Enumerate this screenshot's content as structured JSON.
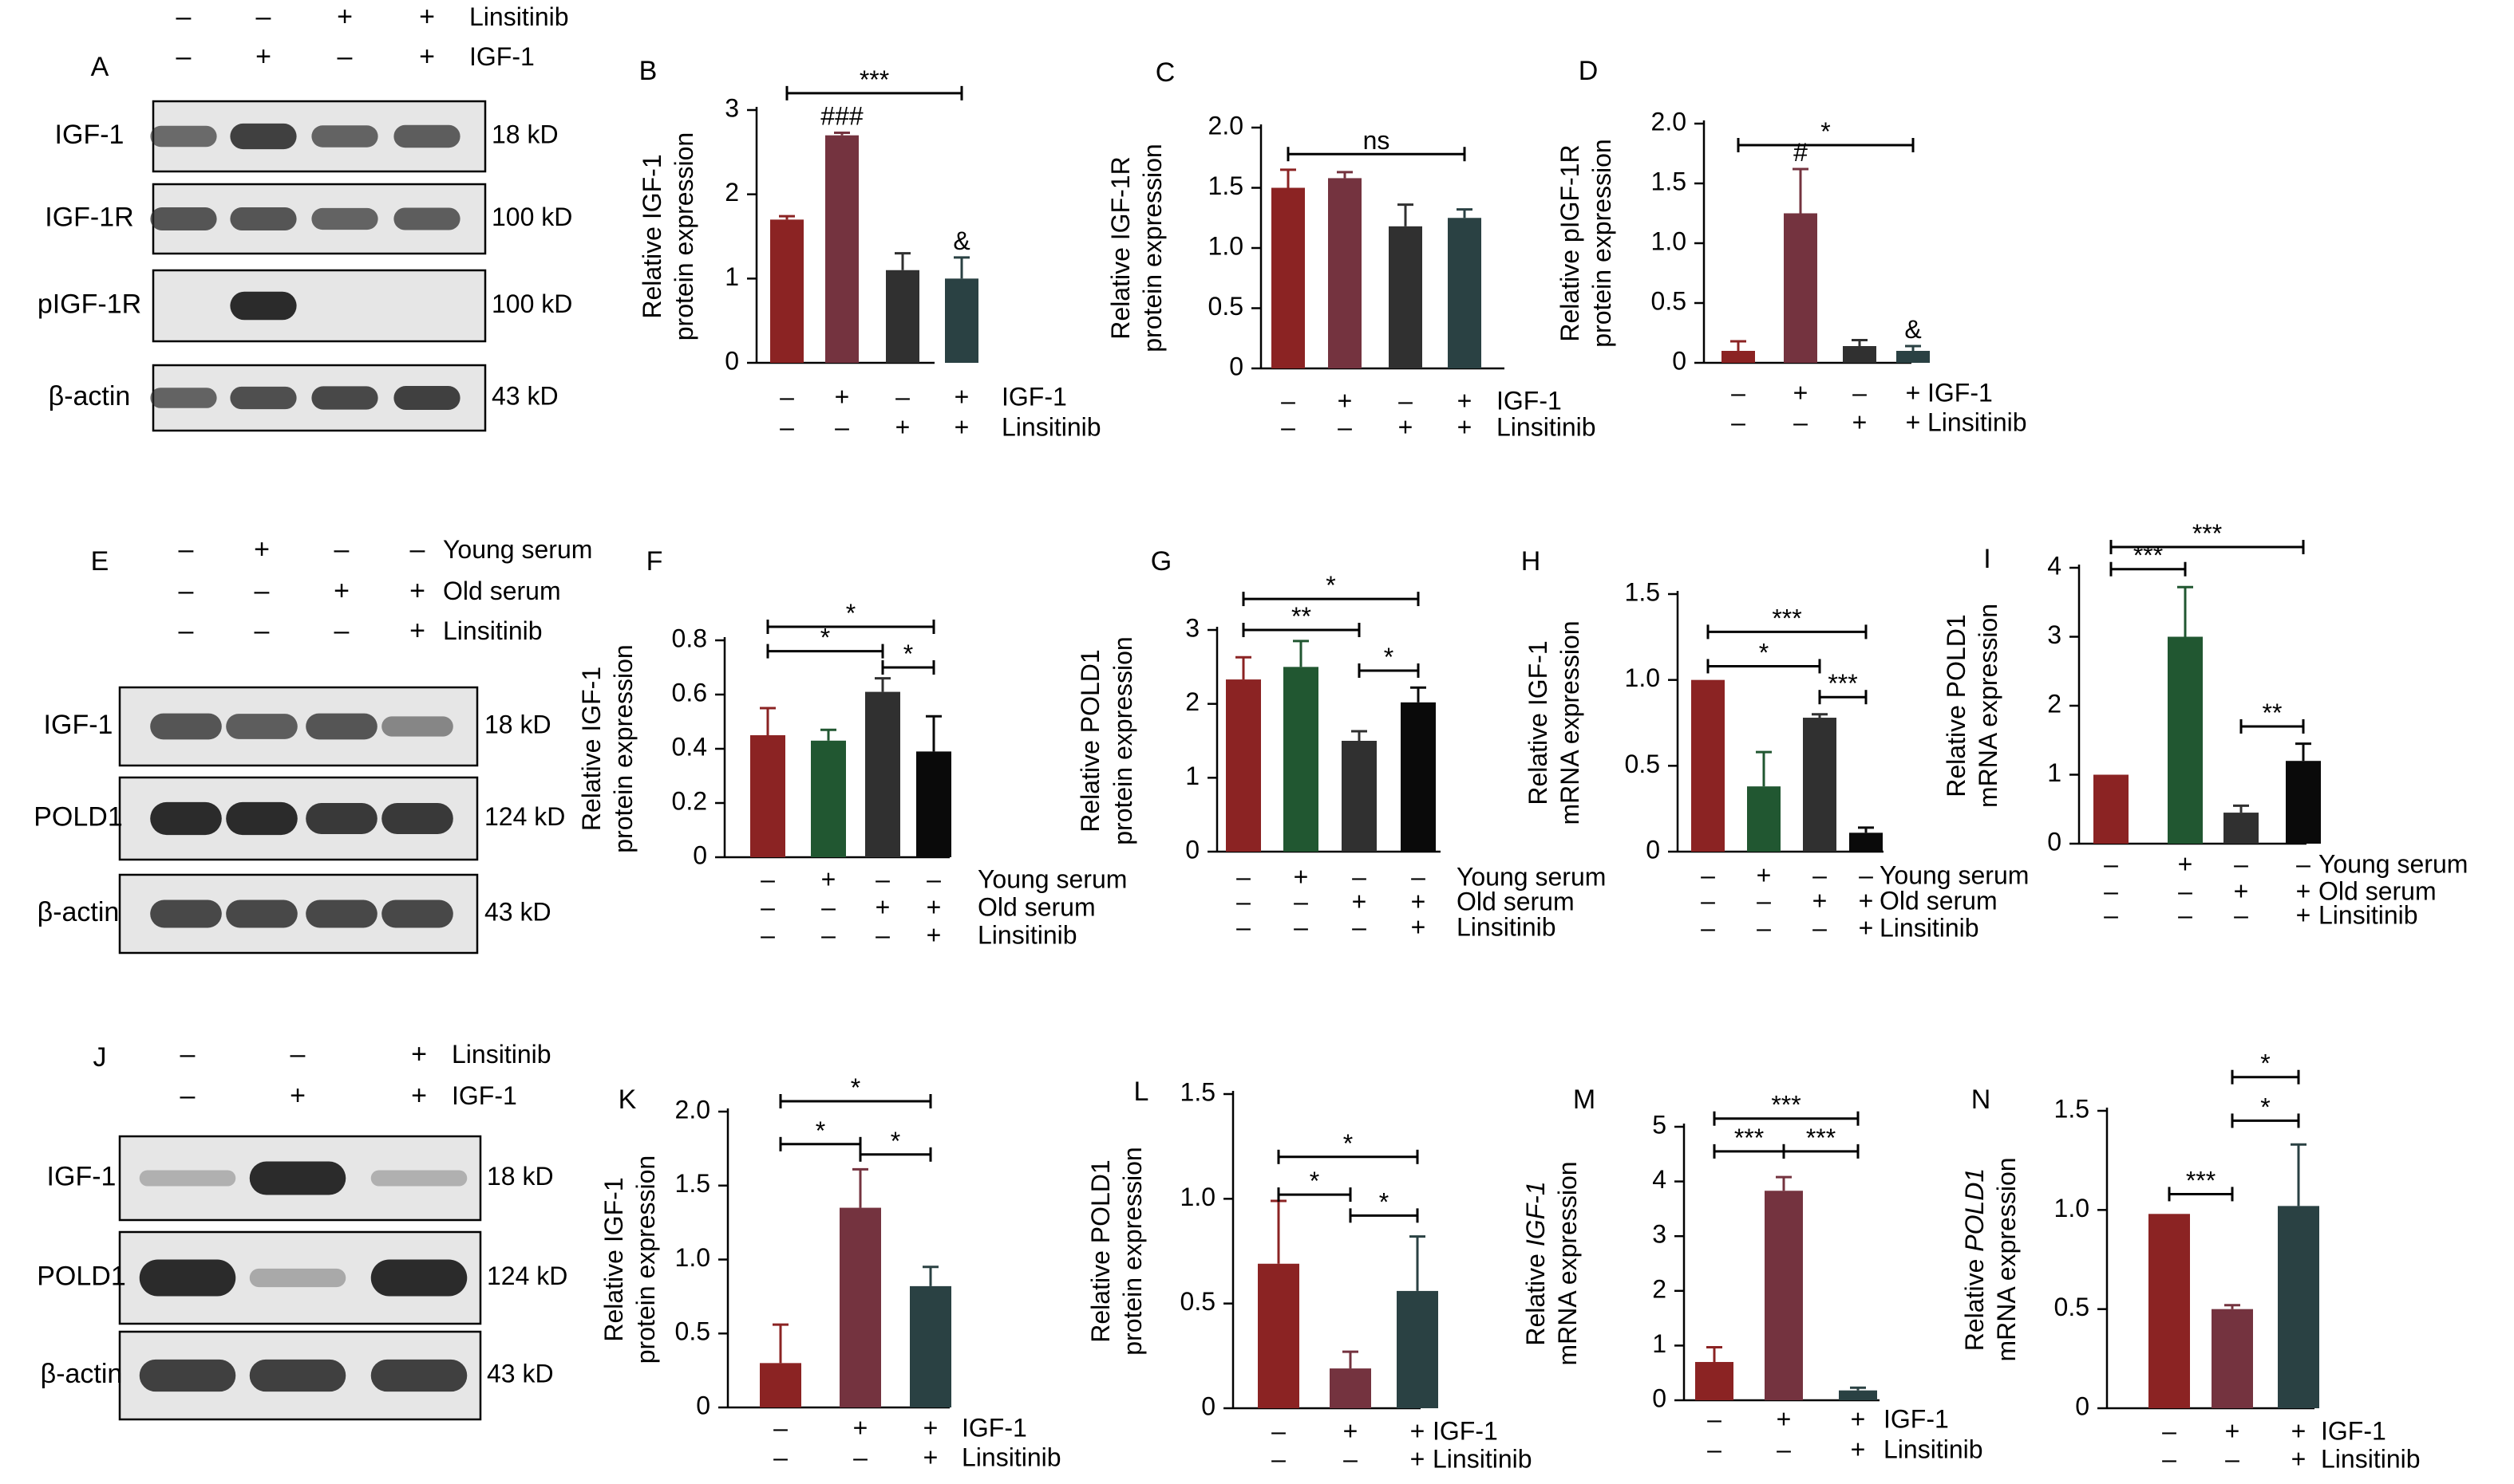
{
  "colors": {
    "dark_red": "#8B2323",
    "maroon": "#74333F",
    "charcoal": "#303030",
    "dark_teal": "#2A4143",
    "green": "#215731",
    "black": "#0A0A0A",
    "blot_bg": "#E6E6E6",
    "band": "#2B2B2B"
  },
  "blots": [
    {
      "panel": "A",
      "conditions": [
        {
          "name": "Linsitinib",
          "signs": [
            "–",
            "–",
            "+",
            "+"
          ]
        },
        {
          "name": "IGF-1",
          "signs": [
            "–",
            "+",
            "–",
            "+"
          ]
        }
      ],
      "rows": [
        {
          "label": "IGF-1",
          "kd": "18 kD",
          "intensity": [
            0.55,
            0.85,
            0.6,
            0.65
          ]
        },
        {
          "label": "IGF-1R",
          "kd": "100 kD",
          "intensity": [
            0.7,
            0.7,
            0.6,
            0.65
          ]
        },
        {
          "label": "pIGF-1R",
          "kd": "100 kD",
          "intensity": [
            0.0,
            1.0,
            0.0,
            0.0
          ]
        },
        {
          "label": "β-actin",
          "kd": "43 kD",
          "intensity": [
            0.6,
            0.75,
            0.8,
            0.85
          ]
        }
      ]
    },
    {
      "panel": "E",
      "conditions": [
        {
          "name": "Young serum",
          "signs": [
            "–",
            "+",
            "–",
            "–"
          ]
        },
        {
          "name": "Old serum",
          "signs": [
            "–",
            "–",
            "+",
            "+"
          ]
        },
        {
          "name": "Linsitinib",
          "signs": [
            "–",
            "–",
            "–",
            "+"
          ]
        }
      ],
      "rows": [
        {
          "label": "IGF-1",
          "kd": "18 kD",
          "intensity": [
            0.7,
            0.65,
            0.7,
            0.35
          ]
        },
        {
          "label": "POLD1",
          "kd": "124 kD",
          "intensity": [
            1.0,
            1.0,
            0.9,
            0.9
          ]
        },
        {
          "label": "β-actin",
          "kd": "43 kD",
          "intensity": [
            0.8,
            0.8,
            0.8,
            0.8
          ]
        }
      ]
    },
    {
      "panel": "J",
      "conditions": [
        {
          "name": "Linsitinib",
          "signs": [
            "–",
            "–",
            "+"
          ]
        },
        {
          "name": "IGF-1",
          "signs": [
            "–",
            "+",
            "+"
          ]
        }
      ],
      "rows": [
        {
          "label": "IGF-1",
          "kd": "18 kD",
          "intensity": [
            0.05,
            1.0,
            0.05
          ]
        },
        {
          "label": "POLD1",
          "kd": "124 kD",
          "intensity": [
            1.0,
            0.1,
            1.0
          ]
        },
        {
          "label": "β-actin",
          "kd": "43 kD",
          "intensity": [
            0.85,
            0.85,
            0.85
          ]
        }
      ]
    }
  ],
  "chart_data": [
    {
      "panel": "B",
      "type": "bar",
      "ylabel": [
        "Relative IGF-1",
        "protein expression"
      ],
      "ylim": [
        0,
        3
      ],
      "yticks": [
        "0",
        "1",
        "2",
        "3"
      ],
      "ytick_values": [
        0,
        1,
        2,
        3
      ],
      "values": [
        1.7,
        2.7,
        1.1,
        1.0
      ],
      "errors": [
        0.04,
        0.03,
        0.2,
        0.25
      ],
      "colors": [
        "#8B2323",
        "#74333F",
        "#303030",
        "#2A4143"
      ],
      "bar_labels": [
        "",
        "###",
        "",
        "&"
      ],
      "conditions": [
        {
          "name": "IGF-1",
          "signs": [
            "–",
            "+",
            "–",
            "+"
          ]
        },
        {
          "name": "Linsitinib",
          "signs": [
            "–",
            "–",
            "+",
            "+"
          ]
        }
      ],
      "brackets": [
        {
          "from": 0,
          "to": 3,
          "y": 3.2,
          "label": "***"
        }
      ]
    },
    {
      "panel": "C",
      "type": "bar",
      "ylabel": [
        "Relative IGF-1R",
        "protein expression"
      ],
      "ylim": [
        0,
        2.0
      ],
      "yticks": [
        "0",
        "0.5",
        "1.0",
        "1.5",
        "2.0"
      ],
      "ytick_values": [
        0,
        0.5,
        1.0,
        1.5,
        2.0
      ],
      "values": [
        1.5,
        1.58,
        1.18,
        1.25
      ],
      "errors": [
        0.15,
        0.05,
        0.18,
        0.07
      ],
      "colors": [
        "#8B2323",
        "#74333F",
        "#303030",
        "#2A4143"
      ],
      "bar_labels": [
        "",
        "",
        "",
        ""
      ],
      "conditions": [
        {
          "name": "IGF-1",
          "signs": [
            "–",
            "+",
            "–",
            "+"
          ]
        },
        {
          "name": "Linsitinib",
          "signs": [
            "–",
            "–",
            "+",
            "+"
          ]
        }
      ],
      "brackets": [
        {
          "from": 0,
          "to": 3,
          "y": 1.78,
          "label": "ns"
        }
      ]
    },
    {
      "panel": "D",
      "type": "bar",
      "ylabel": [
        "Relative pIGF-1R",
        "protein expression"
      ],
      "ylim": [
        0,
        2.0
      ],
      "yticks": [
        "0",
        "0.5",
        "1.0",
        "1.5",
        "2.0"
      ],
      "ytick_values": [
        0,
        0.5,
        1.0,
        1.5,
        2.0
      ],
      "values": [
        0.1,
        1.25,
        0.14,
        0.1
      ],
      "errors": [
        0.08,
        0.37,
        0.05,
        0.04
      ],
      "colors": [
        "#8B2323",
        "#74333F",
        "#303030",
        "#2A4143"
      ],
      "bar_labels": [
        "",
        "#",
        "",
        "&"
      ],
      "conditions": [
        {
          "name": "IGF-1",
          "signs": [
            "–",
            "+",
            "–",
            "+"
          ]
        },
        {
          "name": "Linsitinib",
          "signs": [
            "–",
            "–",
            "+",
            "+"
          ]
        }
      ],
      "brackets": [
        {
          "from": 0,
          "to": 3,
          "y": 1.82,
          "label": "*"
        }
      ]
    },
    {
      "panel": "F",
      "type": "bar",
      "ylabel": [
        "Relative IGF-1",
        "protein expression"
      ],
      "ylim": [
        0,
        0.8
      ],
      "yticks": [
        "0",
        "0.2",
        "0.4",
        "0.6",
        "0.8"
      ],
      "ytick_values": [
        0,
        0.2,
        0.4,
        0.6,
        0.8
      ],
      "values": [
        0.45,
        0.43,
        0.61,
        0.39
      ],
      "errors": [
        0.1,
        0.04,
        0.05,
        0.13
      ],
      "colors": [
        "#8B2323",
        "#215731",
        "#303030",
        "#0A0A0A"
      ],
      "bar_labels": [
        "",
        "",
        "",
        ""
      ],
      "conditions": [
        {
          "name": "Young serum",
          "signs": [
            "–",
            "+",
            "–",
            "–"
          ]
        },
        {
          "name": "Old serum",
          "signs": [
            "–",
            "–",
            "+",
            "+"
          ]
        },
        {
          "name": "Linsitinib",
          "signs": [
            "–",
            "–",
            "–",
            "+"
          ]
        }
      ],
      "brackets": [
        {
          "from": 0,
          "to": 3,
          "y": 0.85,
          "label": "*"
        },
        {
          "from": 0,
          "to": 2,
          "y": 0.76,
          "label": "*"
        },
        {
          "from": 2,
          "to": 3,
          "y": 0.7,
          "label": "*"
        }
      ]
    },
    {
      "panel": "G",
      "type": "bar",
      "ylabel": [
        "Relative POLD1",
        "protein expression"
      ],
      "ylim": [
        0,
        3
      ],
      "yticks": [
        "0",
        "1",
        "2",
        "3"
      ],
      "ytick_values": [
        0,
        1,
        2,
        3
      ],
      "values": [
        2.33,
        2.5,
        1.5,
        2.02
      ],
      "errors": [
        0.3,
        0.35,
        0.13,
        0.2
      ],
      "colors": [
        "#8B2323",
        "#215731",
        "#303030",
        "#0A0A0A"
      ],
      "bar_labels": [
        "",
        "",
        "",
        ""
      ],
      "conditions": [
        {
          "name": "Young serum",
          "signs": [
            "–",
            "+",
            "–",
            "–"
          ]
        },
        {
          "name": "Old serum",
          "signs": [
            "–",
            "–",
            "+",
            "+"
          ]
        },
        {
          "name": "Linsitinib",
          "signs": [
            "–",
            "–",
            "–",
            "+"
          ]
        }
      ],
      "brackets": [
        {
          "from": 0,
          "to": 3,
          "y": 3.42,
          "label": "*"
        },
        {
          "from": 0,
          "to": 2,
          "y": 3.0,
          "label": "**"
        },
        {
          "from": 2,
          "to": 3,
          "y": 2.45,
          "label": "*"
        }
      ]
    },
    {
      "panel": "H",
      "type": "bar",
      "ylabel": [
        "Relative IGF-1",
        "mRNA expression"
      ],
      "ylim": [
        0,
        1.5
      ],
      "yticks": [
        "0",
        "0.5",
        "1.0",
        "1.5"
      ],
      "ytick_values": [
        0,
        0.5,
        1.0,
        1.5
      ],
      "values": [
        1.0,
        0.38,
        0.78,
        0.11
      ],
      "errors": [
        0.0,
        0.2,
        0.02,
        0.03
      ],
      "colors": [
        "#8B2323",
        "#215731",
        "#303030",
        "#0A0A0A"
      ],
      "bar_labels": [
        "",
        "",
        "",
        ""
      ],
      "conditions": [
        {
          "name": "Young serum",
          "signs": [
            "–",
            "+",
            "–",
            "–"
          ]
        },
        {
          "name": "Old serum",
          "signs": [
            "–",
            "–",
            "+",
            "+"
          ]
        },
        {
          "name": "Linsitinib",
          "signs": [
            "–",
            "–",
            "–",
            "+"
          ]
        }
      ],
      "brackets": [
        {
          "from": 0,
          "to": 3,
          "y": 1.28,
          "label": "***"
        },
        {
          "from": 0,
          "to": 2,
          "y": 1.08,
          "label": "*"
        },
        {
          "from": 2,
          "to": 3,
          "y": 0.9,
          "label": "***"
        }
      ]
    },
    {
      "panel": "I",
      "type": "bar",
      "ylabel": [
        "Relative POLD1",
        "mRNA expression"
      ],
      "ylim": [
        0,
        4
      ],
      "yticks": [
        "0",
        "1",
        "2",
        "3",
        "4"
      ],
      "ytick_values": [
        0,
        1,
        2,
        3,
        4
      ],
      "values": [
        1.0,
        3.0,
        0.45,
        1.2
      ],
      "errors": [
        0.0,
        0.72,
        0.1,
        0.25
      ],
      "colors": [
        "#8B2323",
        "#215731",
        "#303030",
        "#0A0A0A"
      ],
      "bar_labels": [
        "",
        "",
        "",
        ""
      ],
      "conditions": [
        {
          "name": "Young serum",
          "signs": [
            "–",
            "+",
            "–",
            "–"
          ]
        },
        {
          "name": "Old serum",
          "signs": [
            "–",
            "–",
            "+",
            "+"
          ]
        },
        {
          "name": "Linsitinib",
          "signs": [
            "–",
            "–",
            "–",
            "+"
          ]
        }
      ],
      "brackets": [
        {
          "from": 0,
          "to": 3,
          "y": 4.3,
          "label": "***"
        },
        {
          "from": 0,
          "to": 1,
          "y": 3.98,
          "label": "***"
        },
        {
          "from": 2,
          "to": 3,
          "y": 1.7,
          "label": "**"
        }
      ]
    },
    {
      "panel": "K",
      "type": "bar",
      "ylabel": [
        "Relative IGF-1",
        "protein expression"
      ],
      "ylim": [
        0,
        2.0
      ],
      "yticks": [
        "0",
        "0.5",
        "1.0",
        "1.5",
        "2.0"
      ],
      "ytick_values": [
        0,
        0.5,
        1.0,
        1.5,
        2.0
      ],
      "values": [
        0.3,
        1.35,
        0.82
      ],
      "errors": [
        0.26,
        0.26,
        0.13
      ],
      "colors": [
        "#8B2323",
        "#74333F",
        "#2A4143"
      ],
      "bar_labels": [
        "",
        "",
        ""
      ],
      "conditions": [
        {
          "name": "IGF-1",
          "signs": [
            "–",
            "+",
            "+"
          ]
        },
        {
          "name": "Linsitinib",
          "signs": [
            "–",
            "–",
            "+"
          ]
        }
      ],
      "brackets": [
        {
          "from": 0,
          "to": 2,
          "y": 2.07,
          "label": "*"
        },
        {
          "from": 0,
          "to": 1,
          "y": 1.78,
          "label": "*"
        },
        {
          "from": 1,
          "to": 2,
          "y": 1.71,
          "label": "*"
        }
      ]
    },
    {
      "panel": "L",
      "type": "bar",
      "ylabel": [
        "Relative POLD1",
        "protein expression"
      ],
      "ylim": [
        0,
        1.5
      ],
      "yticks": [
        "0",
        "0.5",
        "1.0",
        "1.5"
      ],
      "ytick_values": [
        0,
        0.5,
        1.0,
        1.5
      ],
      "values": [
        0.69,
        0.19,
        0.56
      ],
      "errors": [
        0.3,
        0.08,
        0.26
      ],
      "colors": [
        "#8B2323",
        "#74333F",
        "#2A4143"
      ],
      "bar_labels": [
        "",
        "",
        ""
      ],
      "conditions": [
        {
          "name": "IGF-1",
          "signs": [
            "–",
            "+",
            "+"
          ]
        },
        {
          "name": "Linsitinib",
          "signs": [
            "–",
            "–",
            "+"
          ]
        }
      ],
      "brackets": [
        {
          "from": 0,
          "to": 2,
          "y": 1.2,
          "label": "*"
        },
        {
          "from": 0,
          "to": 1,
          "y": 1.02,
          "label": "*"
        },
        {
          "from": 1,
          "to": 2,
          "y": 0.92,
          "label": "*"
        }
      ]
    },
    {
      "panel": "M",
      "type": "bar",
      "ylabel": [
        "Relative IGF-1",
        "mRNA expression"
      ],
      "ylabel_italic": "IGF-1",
      "ylim": [
        0,
        5
      ],
      "yticks": [
        "0",
        "1",
        "2",
        "3",
        "4",
        "5"
      ],
      "ytick_values": [
        0,
        1,
        2,
        3,
        4,
        5
      ],
      "values": [
        0.7,
        3.83,
        0.18
      ],
      "errors": [
        0.27,
        0.25,
        0.05
      ],
      "colors": [
        "#8B2323",
        "#74333F",
        "#2A4143"
      ],
      "bar_labels": [
        "",
        "",
        ""
      ],
      "conditions": [
        {
          "name": "IGF-1",
          "signs": [
            "–",
            "+",
            "+"
          ]
        },
        {
          "name": "Linsitinib",
          "signs": [
            "–",
            "–",
            "+"
          ]
        }
      ],
      "brackets": [
        {
          "from": 0,
          "to": 2,
          "y": 5.15,
          "label": "***"
        },
        {
          "from": 0,
          "to": 1,
          "y": 4.55,
          "label": "***"
        },
        {
          "from": 1,
          "to": 2,
          "y": 4.55,
          "label": "***"
        }
      ]
    },
    {
      "panel": "N",
      "type": "bar",
      "ylabel": [
        "Relative POLD1",
        "mRNA expression"
      ],
      "ylabel_italic": "POLD1",
      "ylim": [
        0,
        1.5
      ],
      "yticks": [
        "0",
        "0.5",
        "1.0",
        "1.5"
      ],
      "ytick_values": [
        0,
        0.5,
        1.0,
        1.5
      ],
      "values": [
        0.98,
        0.5,
        1.02
      ],
      "errors": [
        0.0,
        0.02,
        0.31
      ],
      "colors": [
        "#8B2323",
        "#74333F",
        "#2A4143"
      ],
      "bar_labels": [
        "",
        "",
        ""
      ],
      "conditions": [
        {
          "name": "IGF-1",
          "signs": [
            "–",
            "+",
            "+"
          ]
        },
        {
          "name": "Linsitinib",
          "signs": [
            "–",
            "–",
            "+"
          ]
        }
      ],
      "brackets": [
        {
          "from": 1,
          "to": 2,
          "y": 1.67,
          "label": "*"
        },
        {
          "from": 1,
          "to": 2,
          "y": 1.45,
          "label": "*"
        },
        {
          "from": 0,
          "to": 1,
          "y": 1.08,
          "label": "***"
        }
      ]
    }
  ]
}
